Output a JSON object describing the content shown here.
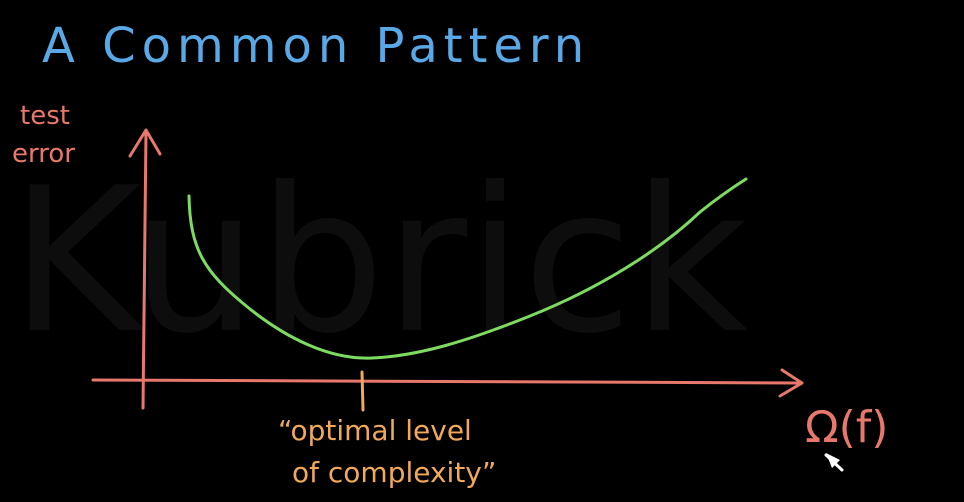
{
  "title": "A Common Pattern",
  "y_axis_label_line1": "test",
  "y_axis_label_line2": "error",
  "x_axis_label": "Ω(f)",
  "tick_annotation_line1": "“optimal level",
  "tick_annotation_line2": "of complexity”",
  "watermark_text": "Kubrick",
  "colors": {
    "background": "#000000",
    "title": "#5aa9e6",
    "axes": "#e8786b",
    "curve": "#7ddb62",
    "annotation": "#f0a85a",
    "watermark": "#0d0d0d",
    "cursor": "#ffffff"
  },
  "icons": {
    "cursor": "mouse-pointer-icon"
  }
}
